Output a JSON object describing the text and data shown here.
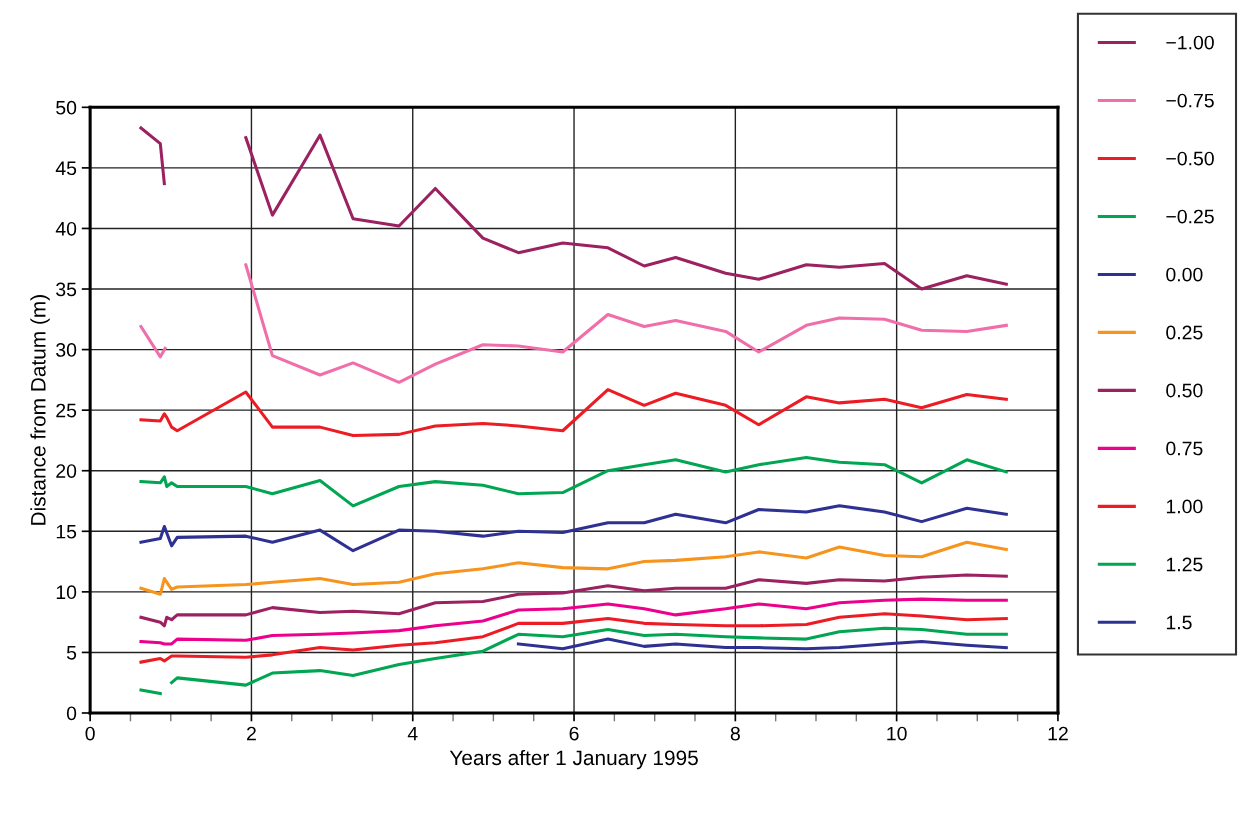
{
  "chart_data": {
    "type": "line",
    "xlabel": "Years after 1 January 1995",
    "ylabel": "Distance from Datum (m)",
    "xlim": [
      0,
      12
    ],
    "ylim": [
      0,
      50
    ],
    "xticks": [
      0,
      {
        "value": 0.5,
        "label": null
      },
      2,
      {
        "value": 1,
        "label": null
      },
      {
        "value": 1.5,
        "label": null
      },
      {
        "value": 2.5,
        "label": null
      },
      {
        "value": 3,
        "label": null
      },
      {
        "value": 3.5,
        "label": null
      },
      4,
      {
        "value": 4.5,
        "label": null
      },
      {
        "value": 5,
        "label": null
      },
      {
        "value": 5.5,
        "label": null
      },
      6,
      {
        "value": 6.5,
        "label": null
      },
      {
        "value": 7,
        "label": null
      },
      {
        "value": 7.5,
        "label": null
      },
      8,
      {
        "value": 8.5,
        "label": null
      },
      {
        "value": 9,
        "label": null
      },
      {
        "value": 9.5,
        "label": null
      },
      10,
      {
        "value": 10.5,
        "label": null
      },
      {
        "value": 11,
        "label": null
      },
      {
        "value": 11.5,
        "label": null
      },
      12
    ],
    "yticks": [
      0,
      5,
      10,
      15,
      20,
      25,
      30,
      35,
      40,
      45,
      50
    ],
    "grid": true,
    "legend": "right",
    "marker": "none",
    "line_style": "solid",
    "series": [
      {
        "name": "−1.00",
        "color": "#9b2160",
        "x": [
          0.63,
          0.87,
          0.92,
          1.5,
          1.93,
          2.26,
          2.85,
          3.26,
          3.83,
          4.28,
          4.87,
          5.31,
          5.86,
          6.42,
          6.87,
          7.26,
          7.88,
          8.29,
          8.88,
          9.29,
          9.85,
          10.31,
          10.87,
          11.36
        ],
        "values": [
          48.3,
          47.0,
          43.7,
          null,
          47.5,
          41.1,
          47.7,
          40.8,
          40.2,
          43.3,
          39.2,
          38.0,
          38.8,
          38.4,
          36.9,
          37.6,
          36.3,
          35.8,
          37.0,
          36.8,
          37.1,
          35.0,
          36.1,
          35.4
        ]
      },
      {
        "name": "−0.75",
        "color": "#f06eaa",
        "x": [
          0.63,
          0.87,
          0.93,
          1.5,
          1.93,
          2.26,
          2.85,
          3.26,
          3.83,
          4.28,
          4.87,
          5.31,
          5.86,
          6.42,
          6.87,
          7.26,
          7.88,
          8.29,
          8.88,
          9.29,
          9.85,
          10.31,
          10.87,
          11.36
        ],
        "values": [
          31.9,
          29.4,
          30.1,
          null,
          37.0,
          29.5,
          27.9,
          28.9,
          27.3,
          28.8,
          30.4,
          30.3,
          29.8,
          32.9,
          31.9,
          32.4,
          31.5,
          29.8,
          32.0,
          32.6,
          32.5,
          31.6,
          31.5,
          32.0
        ]
      },
      {
        "name": "−0.50",
        "color": "#ed1c24",
        "x": [
          0.63,
          0.87,
          0.92,
          0.95,
          1.01,
          1.08,
          1.93,
          2.26,
          2.85,
          3.26,
          3.83,
          4.28,
          4.87,
          5.31,
          5.86,
          6.42,
          6.87,
          7.26,
          7.88,
          8.29,
          8.88,
          9.29,
          9.85,
          10.31,
          10.87,
          11.36
        ],
        "values": [
          24.2,
          24.1,
          24.7,
          24.4,
          23.6,
          23.3,
          26.5,
          23.6,
          23.6,
          22.9,
          23.0,
          23.7,
          23.9,
          23.7,
          23.3,
          26.7,
          25.4,
          26.4,
          25.4,
          23.8,
          26.1,
          25.6,
          25.9,
          25.2,
          26.3,
          25.9
        ]
      },
      {
        "name": "−0.25",
        "color": "#00a651",
        "x": [
          0.63,
          0.87,
          0.92,
          0.95,
          1.01,
          1.08,
          1.93,
          2.26,
          2.85,
          3.26,
          3.83,
          4.28,
          4.87,
          5.31,
          5.86,
          6.42,
          6.87,
          7.26,
          7.88,
          8.29,
          8.88,
          9.29,
          9.85,
          10.31,
          10.87,
          11.36
        ],
        "values": [
          19.1,
          19.0,
          19.5,
          18.7,
          19.0,
          18.7,
          18.7,
          18.1,
          19.2,
          17.1,
          18.7,
          19.1,
          18.8,
          18.1,
          18.2,
          20.0,
          20.5,
          20.9,
          19.9,
          20.5,
          21.1,
          20.7,
          20.5,
          19.0,
          20.9,
          19.9
        ]
      },
      {
        "name": "0.00",
        "color": "#2e3192",
        "x": [
          0.63,
          0.87,
          0.92,
          1.01,
          1.08,
          1.93,
          2.26,
          2.85,
          3.26,
          3.83,
          4.28,
          4.87,
          5.31,
          5.86,
          6.42,
          6.87,
          7.26,
          7.88,
          8.29,
          8.88,
          9.29,
          9.85,
          10.31,
          10.87,
          11.36
        ],
        "values": [
          14.1,
          14.4,
          15.4,
          13.8,
          14.5,
          14.6,
          14.1,
          15.1,
          13.4,
          15.1,
          15.0,
          14.6,
          15.0,
          14.9,
          15.7,
          15.7,
          16.4,
          15.7,
          16.8,
          16.6,
          17.1,
          16.6,
          15.8,
          16.9,
          16.4
        ]
      },
      {
        "name": "0.25",
        "color": "#f7941d",
        "x": [
          0.63,
          0.87,
          0.92,
          1.01,
          1.08,
          1.93,
          2.26,
          2.85,
          3.26,
          3.83,
          4.28,
          4.87,
          5.31,
          5.86,
          6.42,
          6.87,
          7.26,
          7.88,
          8.29,
          8.88,
          9.29,
          9.85,
          10.31,
          10.87,
          11.36
        ],
        "values": [
          10.3,
          9.8,
          11.1,
          10.2,
          10.4,
          10.6,
          10.8,
          11.1,
          10.6,
          10.8,
          11.5,
          11.9,
          12.4,
          12.0,
          11.9,
          12.5,
          12.6,
          12.9,
          13.3,
          12.8,
          13.7,
          13.0,
          12.9,
          14.1,
          13.5
        ]
      },
      {
        "name": "0.50",
        "color": "#9b2160",
        "x": [
          0.63,
          0.87,
          0.92,
          0.95,
          1.01,
          1.08,
          1.93,
          2.26,
          2.85,
          3.26,
          3.83,
          4.28,
          4.87,
          5.31,
          5.86,
          6.42,
          6.87,
          7.26,
          7.88,
          8.29,
          8.88,
          9.29,
          9.85,
          10.31,
          10.87,
          11.36
        ],
        "values": [
          7.9,
          7.5,
          7.2,
          7.9,
          7.7,
          8.1,
          8.1,
          8.7,
          8.3,
          8.4,
          8.2,
          9.1,
          9.2,
          9.8,
          9.9,
          10.5,
          10.1,
          10.3,
          10.3,
          11.0,
          10.7,
          11.0,
          10.9,
          11.2,
          11.4,
          11.3
        ]
      },
      {
        "name": "0.75",
        "color": "#ec008c",
        "x": [
          0.63,
          0.87,
          0.92,
          1.01,
          1.08,
          1.93,
          2.26,
          2.85,
          3.26,
          3.83,
          4.28,
          4.87,
          5.31,
          5.86,
          6.42,
          6.87,
          7.26,
          7.88,
          8.29,
          8.88,
          9.29,
          9.85,
          10.31,
          10.87,
          11.36
        ],
        "values": [
          5.9,
          5.8,
          5.7,
          5.7,
          6.1,
          6.0,
          6.4,
          6.5,
          6.6,
          6.8,
          7.2,
          7.6,
          8.5,
          8.6,
          9.0,
          8.6,
          8.1,
          8.6,
          9.0,
          8.6,
          9.1,
          9.3,
          9.4,
          9.3,
          9.3
        ]
      },
      {
        "name": "1.00",
        "color": "#ed1c24",
        "x": [
          0.63,
          0.87,
          0.92,
          1.01,
          1.08,
          1.93,
          2.26,
          2.85,
          3.26,
          3.83,
          4.28,
          4.87,
          5.31,
          5.86,
          6.42,
          6.87,
          7.26,
          7.88,
          8.29,
          8.88,
          9.29,
          9.85,
          10.31,
          10.87,
          11.36
        ],
        "values": [
          4.2,
          4.5,
          4.3,
          4.7,
          4.7,
          4.6,
          4.8,
          5.4,
          5.2,
          5.6,
          5.8,
          6.3,
          7.4,
          7.4,
          7.8,
          7.4,
          7.3,
          7.2,
          7.2,
          7.3,
          7.9,
          8.2,
          8.0,
          7.7,
          7.8
        ]
      },
      {
        "name": "1.25",
        "color": "#00a651",
        "x": [
          0.63,
          0.87,
          0.95,
          1.01,
          1.08,
          1.93,
          2.26,
          2.85,
          3.26,
          3.83,
          4.28,
          4.87,
          5.31,
          5.86,
          6.42,
          6.87,
          7.26,
          7.88,
          8.29,
          8.88,
          9.29,
          9.85,
          10.31,
          10.87,
          11.36
        ],
        "values": [
          1.9,
          1.6,
          null,
          2.5,
          2.9,
          2.3,
          3.3,
          3.5,
          3.1,
          4.0,
          4.5,
          5.1,
          6.5,
          6.3,
          6.9,
          6.4,
          6.5,
          6.3,
          6.2,
          6.1,
          6.7,
          7.0,
          6.9,
          6.5,
          6.5
        ]
      },
      {
        "name": "1.5",
        "color": "#2e3192",
        "x": [
          5.31,
          5.86,
          6.42,
          6.87,
          7.26,
          7.88,
          8.29,
          8.88,
          9.29,
          9.85,
          10.31,
          10.87,
          11.36
        ],
        "values": [
          5.7,
          5.3,
          6.1,
          5.5,
          5.7,
          5.4,
          5.4,
          5.3,
          5.4,
          5.7,
          5.9,
          5.6,
          5.4
        ]
      }
    ]
  }
}
